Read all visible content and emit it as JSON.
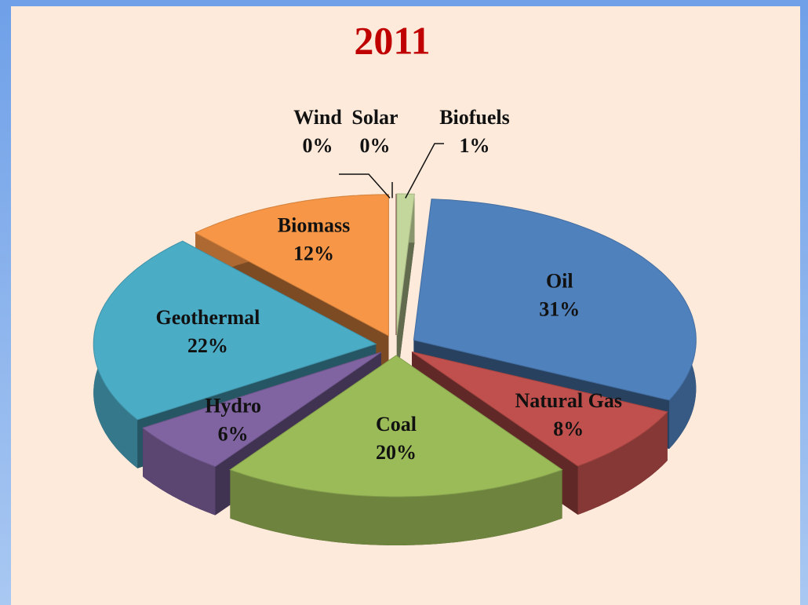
{
  "chart_data": {
    "type": "pie",
    "title": "2011",
    "categories": [
      "Biofuels",
      "Oil",
      "Natural Gas",
      "Coal",
      "Hydro",
      "Geothermal",
      "Biomass",
      "Wind",
      "Solar"
    ],
    "values": [
      1,
      31,
      8,
      20,
      6,
      22,
      12,
      0,
      0
    ],
    "value_labels": [
      "1%",
      "31%",
      "8%",
      "20%",
      "6%",
      "22%",
      "12%",
      "0%",
      "0%"
    ],
    "colors": [
      "#c3d69b",
      "#4f81bd",
      "#c0504d",
      "#9bbb59",
      "#8064a2",
      "#4bacc6",
      "#f79646",
      "#2c4d75",
      "#772c2a"
    ]
  }
}
